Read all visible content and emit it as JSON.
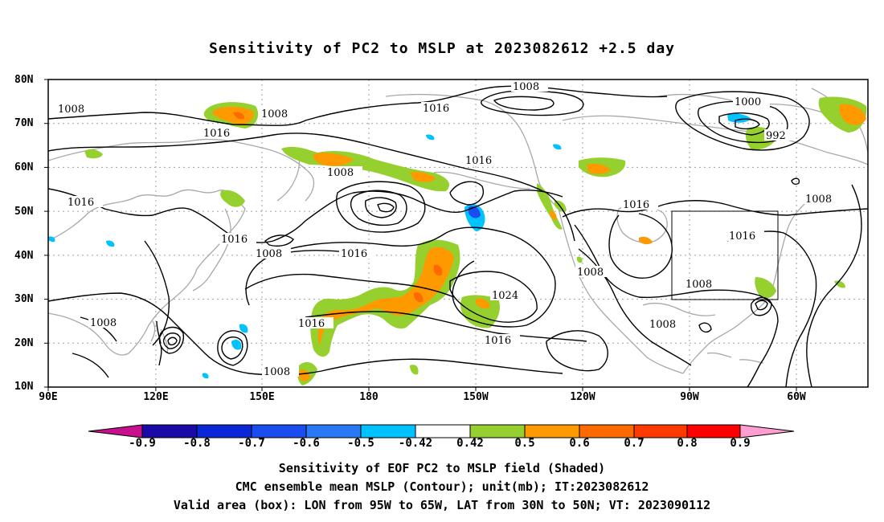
{
  "title": "Sensitivity of PC2 to MSLP at 2023082612 +2.5 day",
  "lat_labels": [
    "80N",
    "70N",
    "60N",
    "50N",
    "40N",
    "30N",
    "20N",
    "10N"
  ],
  "lon_labels": [
    "90E",
    "120E",
    "150E",
    "180",
    "150W",
    "120W",
    "90W",
    "60W"
  ],
  "colorbar": {
    "labels": [
      "-0.9",
      "-0.8",
      "-0.7",
      "-0.6",
      "-0.5",
      "-0.42",
      "0.42",
      "0.5",
      "0.6",
      "0.7",
      "0.8",
      "0.9"
    ],
    "colors": [
      "#c8108c",
      "#1a0aa8",
      "#0a28d8",
      "#1a4cf0",
      "#2a78f5",
      "#00c2ff",
      "#ffffff",
      "#95d02e",
      "#ff9900",
      "#ff6a00",
      "#ff3a00",
      "#ff0000",
      "#ff9ed0"
    ]
  },
  "contour_labels": [
    "1008",
    "1008",
    "1016",
    "1008",
    "1000",
    "992",
    "1016",
    "1016",
    "1008",
    "1016",
    "1008",
    "1016",
    "1016",
    "1008",
    "1016",
    "1008",
    "1024",
    "1016",
    "1008",
    "1008",
    "1016",
    "1008",
    "1008"
  ],
  "box": {
    "lon_from": "95W",
    "lon_to": "65W",
    "lat_from": "30N",
    "lat_to": "50N"
  },
  "footer": {
    "line1": "Sensitivity of EOF PC2 to MSLP field (Shaded)",
    "line2": "CMC ensemble mean MSLP (Contour); unit(mb); IT:2023082612",
    "line3": "Valid area (box): LON from 95W to 65W, LAT from 30N to 50N; VT: 2023090112"
  },
  "colors": {
    "contour": "#000000",
    "coast": "#a8a8a8",
    "grid": "#a0a0a0",
    "green": "#95d02e",
    "orange": "#ff9900",
    "darkorange": "#ff6a00",
    "cyan": "#00c2ff",
    "blue": "#1a4cf0"
  }
}
